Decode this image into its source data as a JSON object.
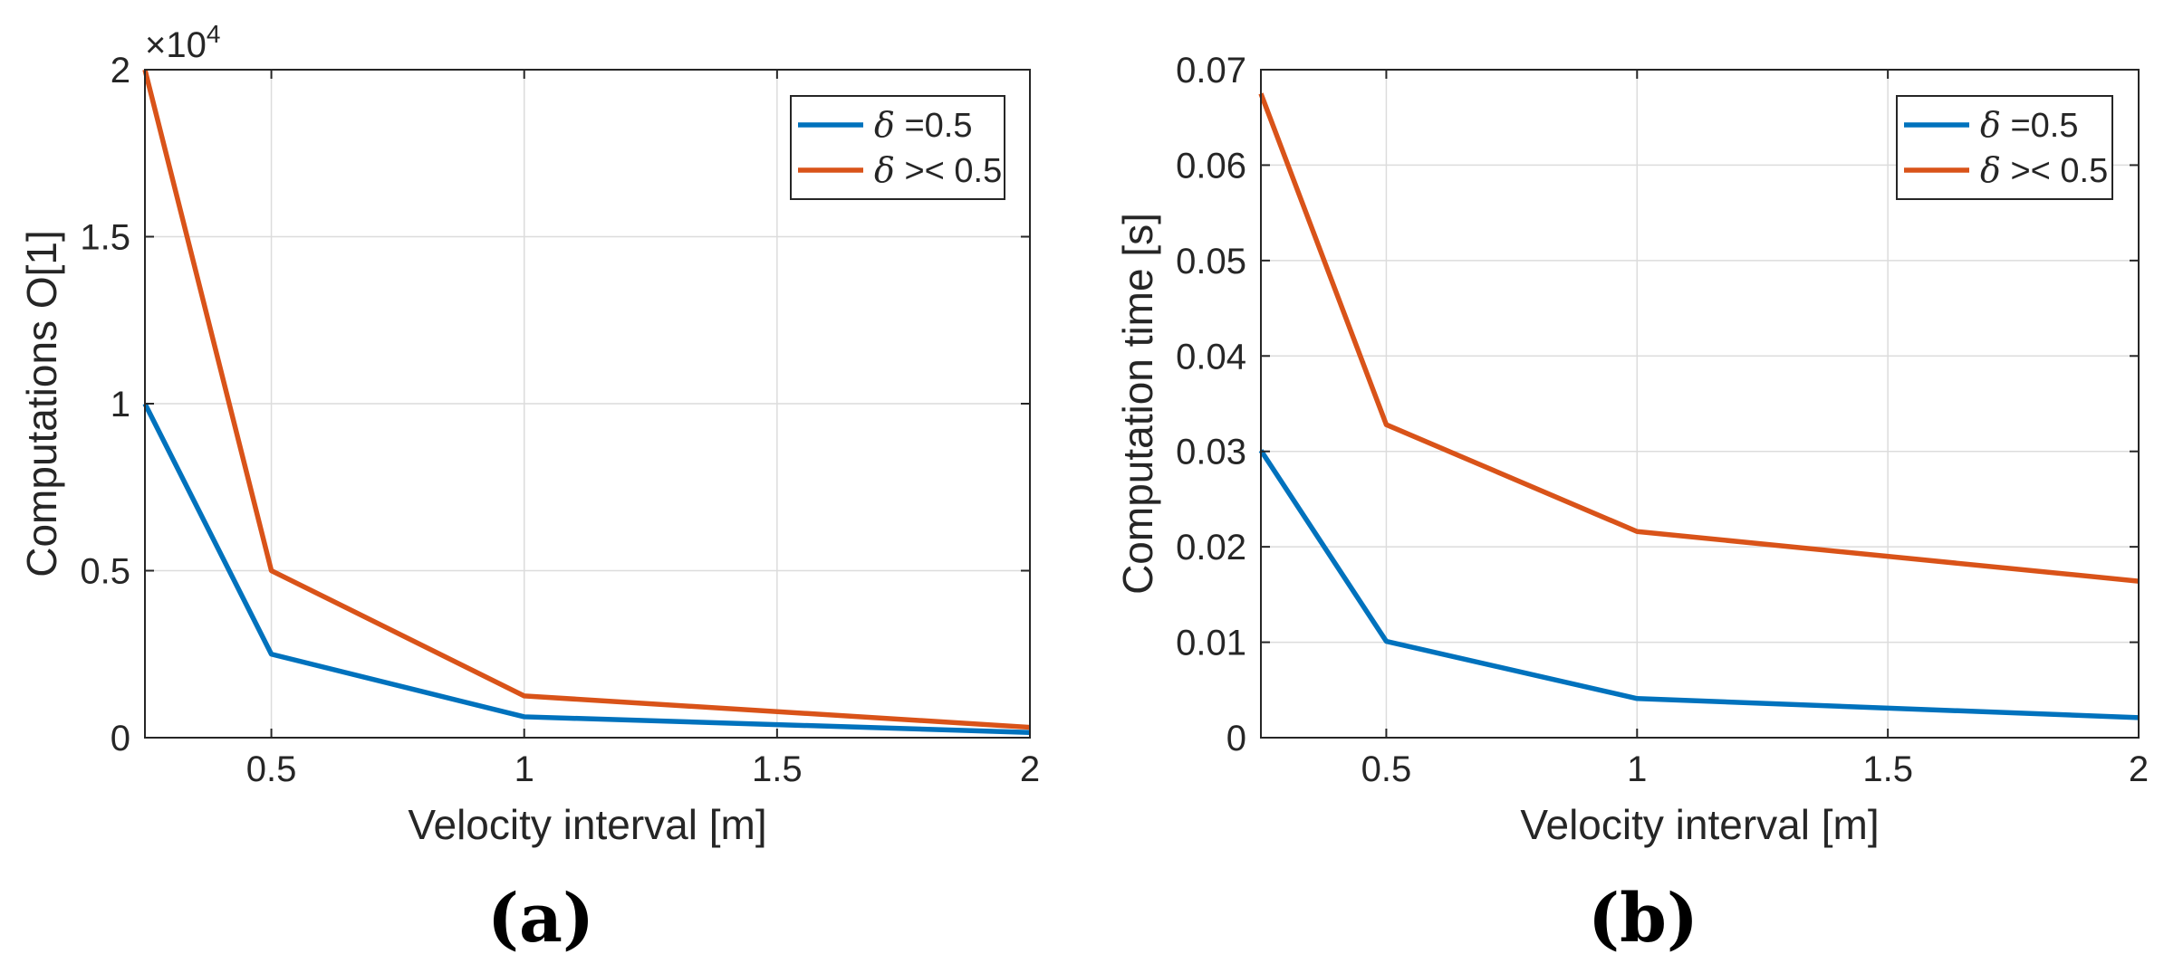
{
  "chart_data": [
    {
      "type": "line",
      "panel_label": "(a)",
      "xlabel": "Velocity interval [m]",
      "ylabel": "Computations O[1]",
      "exponent_label": "×10",
      "exponent_power": "4",
      "xlim": [
        0.25,
        2
      ],
      "ylim": [
        0,
        2
      ],
      "xticks": [
        0.5,
        1,
        1.5,
        2
      ],
      "xtick_labels": [
        "0.5",
        "1",
        "1.5",
        "2"
      ],
      "yticks": [
        0,
        0.5,
        1,
        1.5,
        2
      ],
      "ytick_labels": [
        "0",
        "0.5",
        "1",
        "1.5",
        "2"
      ],
      "grid": true,
      "legend_position": "top-right",
      "x": [
        0.25,
        0.5,
        1,
        2
      ],
      "series": [
        {
          "name": "δ =0.5",
          "legend_symbol": "δ",
          "legend_rest": " =0.5",
          "color": "#0072BD",
          "values": [
            1.0,
            0.25,
            0.0625,
            0.0156
          ]
        },
        {
          "name": "δ >< 0.5",
          "legend_symbol": "δ",
          "legend_rest": " >< 0.5",
          "color": "#D95319",
          "values": [
            2.0,
            0.5,
            0.125,
            0.031
          ]
        }
      ]
    },
    {
      "type": "line",
      "panel_label": "(b)",
      "xlabel": "Velocity interval [m]",
      "ylabel": "Computation time [s]",
      "xlim": [
        0.25,
        2
      ],
      "ylim": [
        0,
        0.07
      ],
      "xticks": [
        0.5,
        1,
        1.5,
        2
      ],
      "xtick_labels": [
        "0.5",
        "1",
        "1.5",
        "2"
      ],
      "yticks": [
        0,
        0.01,
        0.02,
        0.03,
        0.04,
        0.05,
        0.06,
        0.07
      ],
      "ytick_labels": [
        "0",
        "0.01",
        "0.02",
        "0.03",
        "0.04",
        "0.05",
        "0.06",
        "0.07"
      ],
      "grid": true,
      "legend_position": "top-right",
      "x": [
        0.25,
        0.5,
        1,
        2
      ],
      "series": [
        {
          "name": "δ =0.5",
          "legend_symbol": "δ",
          "legend_rest": " =0.5",
          "color": "#0072BD",
          "values": [
            0.0301,
            0.0101,
            0.0041,
            0.0021
          ]
        },
        {
          "name": "δ >< 0.5",
          "legend_symbol": "δ",
          "legend_rest": " >< 0.5",
          "color": "#D95319",
          "values": [
            0.0675,
            0.0328,
            0.0216,
            0.0164
          ]
        }
      ]
    }
  ]
}
